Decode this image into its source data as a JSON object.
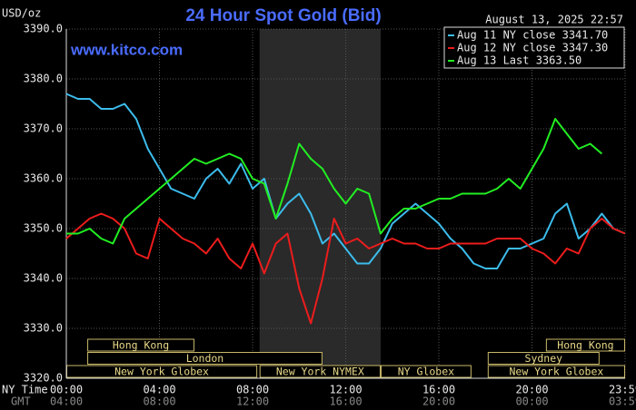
{
  "chart_data": {
    "type": "line",
    "title": "24 Hour Spot Gold (Bid)",
    "date": "August 13, 2025 22:57",
    "source": "www.kitco.com",
    "y_label": "USD/oz",
    "x_label": "NY Time",
    "x2_label": "GMT",
    "xlim": [
      0,
      24
    ],
    "xticks": [
      {
        "value": 0,
        "label": "00:00"
      },
      {
        "value": 4,
        "label": "04:00"
      },
      {
        "value": 8,
        "label": "08:00"
      },
      {
        "value": 12,
        "label": "12:00"
      },
      {
        "value": 16,
        "label": "16:00"
      },
      {
        "value": 20,
        "label": "20:00"
      },
      {
        "value": 24,
        "label": "23:59"
      }
    ],
    "gmt_labels": [
      "04:00",
      "08:00",
      "12:00",
      "16:00",
      "20:00",
      "00:00",
      "03:59"
    ],
    "ylim": [
      3320,
      3390
    ],
    "yticks": [
      {
        "value": 3320,
        "label": "3320.0"
      },
      {
        "value": 3330,
        "label": "3330.0"
      },
      {
        "value": 3340,
        "label": "3340.0"
      },
      {
        "value": 3350,
        "label": "3350.0"
      },
      {
        "value": 3360,
        "label": "3360.0"
      },
      {
        "value": 3370,
        "label": "3370.0"
      },
      {
        "value": 3380,
        "label": "3380.0"
      },
      {
        "value": 3390,
        "label": "3390.0"
      }
    ],
    "grid": true,
    "highlight": [
      8.3,
      13.5
    ],
    "session_rows": [
      [
        {
          "label": "Hong Kong",
          "start": 0.9,
          "end": 5.5
        },
        {
          "label": "Hong Kong",
          "start": 20.6,
          "end": 24
        }
      ],
      [
        {
          "label": "London",
          "start": 0.9,
          "end": 11.0
        },
        {
          "label": "Sydney",
          "start": 18.1,
          "end": 22.9
        }
      ],
      [
        {
          "label": "New York Globex",
          "start": 0,
          "end": 8.2
        },
        {
          "label": "New York NYMEX",
          "start": 8.3,
          "end": 13.5
        },
        {
          "label": "NY Globex",
          "start": 13.5,
          "end": 17.4
        },
        {
          "label": "New York Globex",
          "start": 18.1,
          "end": 24
        }
      ]
    ],
    "x": [
      0,
      0.5,
      1,
      1.5,
      2,
      2.5,
      3,
      3.5,
      4,
      4.5,
      5,
      5.5,
      6,
      6.5,
      7,
      7.5,
      8,
      8.5,
      9,
      9.5,
      10,
      10.5,
      11,
      11.5,
      12,
      12.5,
      13,
      13.5,
      14,
      14.5,
      15,
      15.5,
      16,
      16.5,
      17,
      17.5,
      18,
      18.5,
      19,
      19.5,
      20,
      20.5,
      21,
      21.5,
      22,
      22.5,
      23,
      23.5,
      24
    ],
    "series": [
      {
        "name": "Aug 11 NY close 3341.70",
        "color": "#3cbcec",
        "values": [
          3377,
          3376,
          3376,
          3374,
          3374,
          3375,
          3372,
          3366,
          3362,
          3358,
          3357,
          3356,
          3360,
          3362,
          3359,
          3363,
          3358,
          3360,
          3352,
          3355,
          3357,
          3353,
          3347,
          3349,
          3346,
          3343,
          3343,
          3346,
          3351,
          3353,
          3355,
          3353,
          3351,
          3348,
          3346,
          3343,
          3342,
          3342,
          3346,
          3346,
          3347,
          3348,
          3353,
          3355,
          3348,
          3350,
          3353,
          3350,
          3349
        ]
      },
      {
        "name": "Aug 12 NY close 3347.30",
        "color": "#ec1c1c",
        "values": [
          3348,
          3350,
          3352,
          3353,
          3352,
          3350,
          3345,
          3344,
          3352,
          3350,
          3348,
          3347,
          3345,
          3348,
          3344,
          3342,
          3347,
          3341,
          3347,
          3349,
          3338,
          3331,
          3340,
          3352,
          3347,
          3348,
          3346,
          3347,
          3348,
          3347,
          3347,
          3346,
          3346,
          3347,
          3347,
          3347,
          3347,
          3348,
          3348,
          3348,
          3346,
          3345,
          3343,
          3346,
          3345,
          3350,
          3352,
          3350,
          3349
        ]
      },
      {
        "name": "Aug 13 Last 3363.50",
        "color": "#22ee22",
        "values": [
          3349,
          3349,
          3350,
          3348,
          3347,
          3352,
          3354,
          3356,
          3358,
          3360,
          3362,
          3364,
          3363,
          3364,
          3365,
          3364,
          3360,
          3359,
          3352,
          3359,
          3367,
          3364,
          3362,
          3358,
          3355,
          3358,
          3357,
          3349,
          3352,
          3354,
          3354,
          3355,
          3356,
          3356,
          3357,
          3357,
          3357,
          3358,
          3360,
          3358,
          3362,
          3366,
          3372,
          3369,
          3366,
          3367,
          3365,
          null,
          null
        ]
      }
    ]
  }
}
